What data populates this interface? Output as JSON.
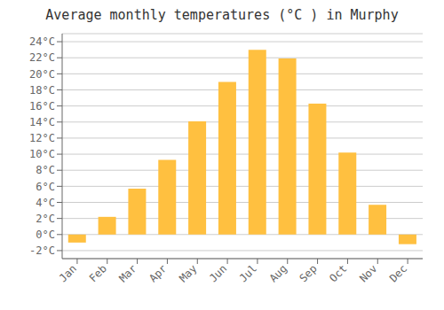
{
  "chart_data": {
    "type": "bar",
    "title": "Average monthly temperatures (°C ) in Murphy",
    "categories": [
      "Jan",
      "Feb",
      "Mar",
      "Apr",
      "May",
      "Jun",
      "Jul",
      "Aug",
      "Sep",
      "Oct",
      "Nov",
      "Dec"
    ],
    "values": [
      -1.0,
      2.2,
      5.7,
      9.3,
      14.1,
      19.0,
      23.0,
      21.9,
      16.3,
      10.2,
      3.7,
      -1.2
    ],
    "color": "#FFC040",
    "ylim": [
      -3,
      25
    ],
    "yticks": [
      {
        "value": -2,
        "label": "-2°C"
      },
      {
        "value": 0,
        "label": "0°C"
      },
      {
        "value": 2,
        "label": "2°C"
      },
      {
        "value": 4,
        "label": "4°C"
      },
      {
        "value": 6,
        "label": "6°C"
      },
      {
        "value": 8,
        "label": "8°C"
      },
      {
        "value": 10,
        "label": "10°C"
      },
      {
        "value": 12,
        "label": "12°C"
      },
      {
        "value": 14,
        "label": "14°C"
      },
      {
        "value": 16,
        "label": "16°C"
      },
      {
        "value": 18,
        "label": "18°C"
      },
      {
        "value": 20,
        "label": "20°C"
      },
      {
        "value": 22,
        "label": "22°C"
      },
      {
        "value": 24,
        "label": "24°C"
      }
    ],
    "grid": true
  }
}
